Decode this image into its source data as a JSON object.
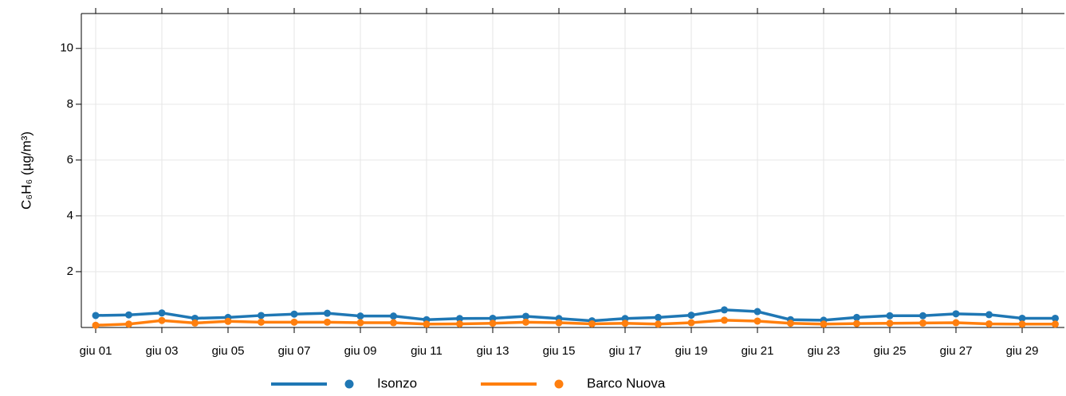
{
  "chart_data": {
    "type": "line",
    "y_label": "C₆H₆ (µg/m³)",
    "categories": [
      "giu 01",
      null,
      "giu 03",
      null,
      "giu 05",
      null,
      "giu 07",
      null,
      "giu 09",
      null,
      "giu 11",
      null,
      "giu 13",
      null,
      "giu 15",
      null,
      "giu 17",
      null,
      "giu 19",
      null,
      "giu 21",
      null,
      "giu 23",
      null,
      "giu 25",
      null,
      "giu 27",
      null,
      "giu 29",
      null
    ],
    "series": [
      {
        "name": "Isonzo",
        "color": "#1f77b4",
        "values": [
          0.43,
          0.45,
          0.52,
          0.33,
          0.36,
          0.43,
          0.48,
          0.51,
          0.41,
          0.41,
          0.28,
          0.32,
          0.33,
          0.4,
          0.32,
          0.24,
          0.32,
          0.36,
          0.44,
          0.63,
          0.57,
          0.28,
          0.26,
          0.36,
          0.42,
          0.42,
          0.49,
          0.46,
          0.33,
          0.33
        ]
      },
      {
        "name": "Barco Nuova",
        "color": "#ff7f0e",
        "values": [
          0.08,
          0.12,
          0.25,
          0.16,
          0.22,
          0.19,
          0.19,
          0.19,
          0.17,
          0.17,
          0.12,
          0.13,
          0.15,
          0.19,
          0.17,
          0.13,
          0.15,
          0.12,
          0.17,
          0.26,
          0.23,
          0.15,
          0.12,
          0.14,
          0.15,
          0.16,
          0.17,
          0.13,
          0.12,
          0.12
        ]
      }
    ],
    "ylim": [
      0,
      11.25
    ],
    "yticks": [
      2,
      4,
      6,
      8,
      10
    ],
    "grid": true,
    "legend": "bottom"
  }
}
